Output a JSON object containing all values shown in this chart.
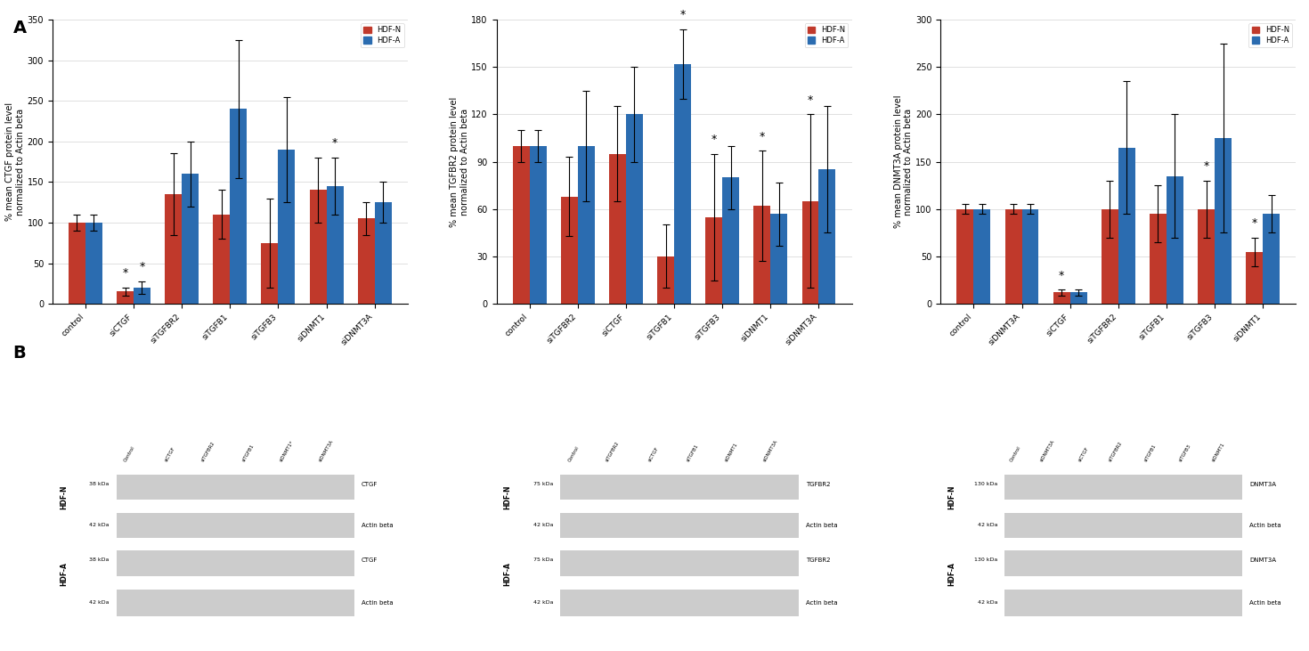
{
  "chart1": {
    "title": "% mean CTGF protein level\nnormalized to Actin beta",
    "categories": [
      "control",
      "siCTGF",
      "siTGFBR2",
      "siTGFB1",
      "siTGFB3",
      "siDNMT1",
      "siDNMT3A"
    ],
    "hdf_n": [
      100,
      15,
      135,
      110,
      75,
      140,
      105
    ],
    "hdf_a": [
      100,
      20,
      160,
      240,
      190,
      145,
      125
    ],
    "hdf_n_err": [
      10,
      5,
      50,
      30,
      55,
      40,
      20
    ],
    "hdf_a_err": [
      10,
      8,
      40,
      85,
      65,
      35,
      25
    ],
    "ylim": [
      0,
      350
    ],
    "yticks": [
      0,
      50,
      100,
      150,
      200,
      250,
      300,
      350
    ],
    "asterisk_n": [
      false,
      true,
      false,
      false,
      false,
      false,
      false
    ],
    "asterisk_a": [
      false,
      true,
      false,
      false,
      false,
      true,
      false
    ]
  },
  "chart2": {
    "title": "% mean TGFBR2 protein level\nnormalized to Actin beta",
    "categories": [
      "control",
      "siTGFBR2",
      "siCTGF",
      "siTGFB1",
      "siTGFB3",
      "siDNMT1",
      "siDNMT3A"
    ],
    "hdf_n": [
      100,
      68,
      95,
      30,
      55,
      62,
      65
    ],
    "hdf_a": [
      100,
      100,
      120,
      152,
      80,
      57,
      85
    ],
    "hdf_n_err": [
      10,
      25,
      30,
      20,
      40,
      35,
      55
    ],
    "hdf_a_err": [
      10,
      35,
      30,
      22,
      20,
      20,
      40
    ],
    "ylim": [
      0,
      180
    ],
    "yticks": [
      0,
      30,
      60,
      90,
      120,
      150,
      180
    ],
    "asterisk_n": [
      false,
      false,
      false,
      false,
      true,
      true,
      true
    ],
    "asterisk_a": [
      false,
      false,
      false,
      true,
      false,
      false,
      false
    ]
  },
  "chart3": {
    "title": "% mean DNMT3A protein level\nnormalized to Actin beta",
    "categories": [
      "control",
      "siDNMT3A",
      "siCTGF",
      "siTGFBR2",
      "siTGFB1",
      "siTGFB3",
      "siDNMT1"
    ],
    "hdf_n": [
      100,
      100,
      12,
      100,
      95,
      100,
      55
    ],
    "hdf_a": [
      100,
      100,
      12,
      165,
      135,
      175,
      95
    ],
    "hdf_n_err": [
      5,
      5,
      3,
      30,
      30,
      30,
      15
    ],
    "hdf_a_err": [
      5,
      5,
      3,
      70,
      65,
      100,
      20
    ],
    "ylim": [
      0,
      300
    ],
    "yticks": [
      0,
      50,
      100,
      150,
      200,
      250,
      300
    ],
    "asterisk_n": [
      false,
      false,
      true,
      false,
      false,
      true,
      true
    ],
    "asterisk_a": [
      false,
      false,
      false,
      false,
      false,
      false,
      false
    ]
  },
  "color_n": "#c0392b",
  "color_a": "#2b6cb0",
  "legend_n": "HDF-N",
  "legend_a": "HDF-A",
  "bar_width": 0.35,
  "label_A": "A",
  "label_B": "B",
  "bg_color": "#ffffff"
}
